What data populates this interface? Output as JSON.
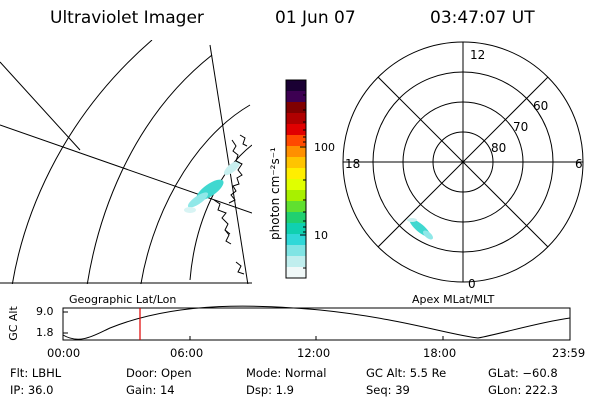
{
  "header": {
    "instrument": "Ultraviolet Imager",
    "date": "01 Jun 07",
    "time": "03:47:07 UT"
  },
  "colorbar": {
    "unit_label": "photon cm⁻²s⁻¹",
    "ticks": [
      "100",
      "10"
    ],
    "colors": [
      "#1a0033",
      "#3d0052",
      "#800000",
      "#b00000",
      "#e00000",
      "#ff4a00",
      "#ff9000",
      "#ffc400",
      "#ffee00",
      "#e0ff00",
      "#a8f000",
      "#60e030",
      "#20d070",
      "#10d0b0",
      "#30d8d8",
      "#80e4e4",
      "#c0eeee",
      "#f0f8f8"
    ]
  },
  "polar_plot": {
    "mlt_labels": {
      "top": "12",
      "left": "18",
      "right": "6",
      "bottom": "0"
    },
    "lat_labels": [
      "60",
      "70",
      "80"
    ],
    "coord_label": "Apex MLat/MLT"
  },
  "map_plot": {
    "coord_label": "Geographic Lat/Lon"
  },
  "timeline": {
    "y_label": "GC Alt",
    "y_ticks": [
      "9.0",
      "1.8"
    ],
    "x_ticks": [
      "00:00",
      "06:00",
      "12:00",
      "18:00",
      "23:59"
    ],
    "marker_color": "#e00000"
  },
  "status": {
    "filter": "Flt: LBHL",
    "ip": "IP: 36.0",
    "door": "Door: Open",
    "gain": "Gain: 14",
    "mode": "Mode: Normal",
    "dsp": "Dsp:    1.9",
    "gc_alt": "GC Alt: 5.5 Re",
    "seq": "Seq: 39",
    "glat": "GLat: −60.8",
    "glon": "GLon: 222.3"
  }
}
